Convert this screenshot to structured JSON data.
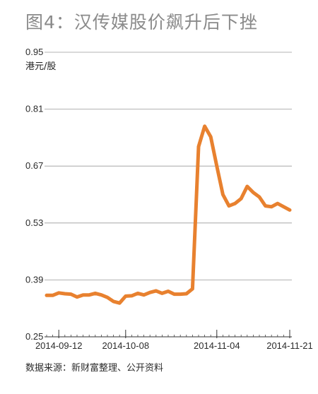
{
  "title": "图4：汉传媒股价飙升后下挫",
  "source": "数据来源：新财富整理、公开资料",
  "chart_data": {
    "type": "line",
    "ylabel": "港元/股",
    "ylim": [
      0.25,
      0.95
    ],
    "yticks": [
      "0.95",
      "0.81",
      "0.67",
      "0.53",
      "0.39",
      "0.25"
    ],
    "ytick_values": [
      0.95,
      0.81,
      0.67,
      0.53,
      0.39,
      0.25
    ],
    "grid": true,
    "line_color": "#e8812f",
    "xtick_labels": [
      "2014-09-12",
      "2014-10-08",
      "2014-11-04",
      "2014-11-21"
    ],
    "xtick_index": [
      2,
      13,
      28,
      40
    ],
    "series": [
      {
        "values": [
          0.352,
          0.352,
          0.358,
          0.356,
          0.355,
          0.348,
          0.353,
          0.353,
          0.357,
          0.353,
          0.347,
          0.337,
          0.333,
          0.35,
          0.351,
          0.357,
          0.353,
          0.359,
          0.363,
          0.357,
          0.362,
          0.355,
          0.355,
          0.356,
          0.368,
          0.718,
          0.768,
          0.742,
          0.67,
          0.6,
          0.572,
          0.578,
          0.59,
          0.62,
          0.605,
          0.594,
          0.572,
          0.57,
          0.578,
          0.57,
          0.562
        ]
      }
    ]
  }
}
